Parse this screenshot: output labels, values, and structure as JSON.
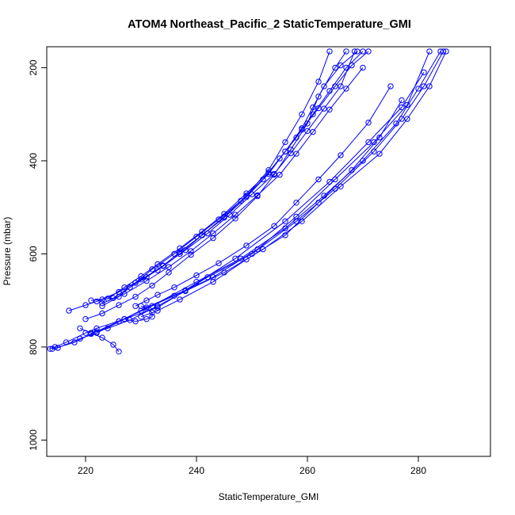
{
  "chart_data": {
    "type": "line",
    "title": "ATOM4 Northeast_Pacific_2 StaticTemperature_GMI",
    "xlabel": "StaticTemperature_GMI",
    "ylabel": "Pressure (mbar)",
    "xlim": [
      213,
      293
    ],
    "ylim": [
      1035,
      155
    ],
    "y_reversed": true,
    "xticks": [
      "220",
      "240",
      "260",
      "280"
    ],
    "yticks": [
      "200",
      "400",
      "600",
      "800",
      "1000"
    ],
    "grid": false,
    "legend": "none",
    "series_color": "#0000ff",
    "series": [
      {
        "x": [
          213.6,
          214.5,
          216.5,
          220.0,
          222.0,
          227.0,
          233.0,
          242.0,
          250.0,
          258.0,
          265.0,
          272.0,
          277.0,
          281.0,
          284.5
        ],
        "y": [
          804,
          800,
          790,
          770,
          760,
          740,
          715,
          650,
          600,
          530,
          460,
          380,
          310,
          240,
          165
        ]
      },
      {
        "x": [
          214.0,
          218.0,
          221.0,
          226.0,
          232.0,
          240.0,
          248.0,
          256.0,
          263.0,
          270.0,
          276.0,
          280.0,
          284.0
        ],
        "y": [
          804,
          790,
          772,
          745,
          712,
          660,
          610,
          545,
          475,
          400,
          320,
          245,
          165
        ]
      },
      {
        "x": [
          221.0,
          224.0,
          228.0,
          233.0,
          238.0,
          245.0,
          252.0,
          259.0,
          266.0,
          273.0,
          278.0,
          282.0,
          285.0
        ],
        "y": [
          770,
          760,
          742,
          712,
          680,
          640,
          590,
          530,
          455,
          385,
          310,
          240,
          165
        ]
      },
      {
        "x": [
          215.0,
          219.0,
          222.0,
          227.0,
          231.0,
          238.0,
          247.0,
          256.0,
          264.0,
          271.0,
          277.0,
          281.0
        ],
        "y": [
          802,
          782,
          770,
          740,
          715,
          678,
          610,
          530,
          445,
          360,
          285,
          210
        ]
      },
      {
        "x": [
          222.0,
          226.0,
          230.0,
          236.0,
          243.0,
          251.0,
          258.0,
          265.0,
          272.0,
          278.0,
          282.0
        ],
        "y": [
          768,
          745,
          722,
          690,
          650,
          590,
          520,
          440,
          360,
          280,
          165
        ]
      },
      {
        "x": [
          217.0,
          220.0,
          223.0,
          226.0,
          229.0,
          233.0,
          237.0,
          241.0,
          245.0,
          249.0,
          253.0,
          256.0,
          259.0,
          262.0,
          264.0
        ],
        "y": [
          722,
          710,
          698,
          682,
          662,
          635,
          600,
          560,
          520,
          475,
          420,
          360,
          300,
          230,
          165
        ]
      },
      {
        "x": [
          220.0,
          223.0,
          226.0,
          229.0,
          232.0,
          235.0,
          239.0,
          243.0,
          247.0,
          251.0,
          254.0,
          257.0,
          260.0,
          262.0,
          265.0,
          267.0
        ],
        "y": [
          740,
          728,
          710,
          692,
          668,
          640,
          602,
          566,
          524,
          476,
          430,
          376,
          320,
          262,
          200,
          165
        ]
      },
      {
        "x": [
          221.0,
          225.0,
          228.0,
          231.0,
          234.0,
          237.0,
          241.0,
          245.0,
          249.0,
          253.0,
          256.0,
          259.0,
          261.0,
          263.0,
          266.0,
          269.0
        ],
        "y": [
          700,
          695,
          672,
          650,
          625,
          596,
          560,
          522,
          478,
          428,
          380,
          330,
          285,
          240,
          195,
          165
        ]
      },
      {
        "x": [
          223.0,
          226.0,
          229.0,
          232.0,
          236.0,
          240.0,
          244.0,
          248.0,
          252.0,
          255.0,
          258.0,
          261.0,
          264.0,
          267.0,
          270.0
        ],
        "y": [
          712,
          692,
          662,
          633,
          600,
          563,
          526,
          486,
          440,
          395,
          350,
          300,
          250,
          200,
          165
        ]
      },
      {
        "x": [
          224.0,
          227.0,
          230.0,
          233.0,
          237.0,
          241.0,
          245.0,
          249.0,
          253.0,
          256.0,
          259.0,
          262.0,
          265.0,
          268.0,
          271.0
        ],
        "y": [
          696,
          672,
          648,
          622,
          588,
          552,
          514,
          470,
          425,
          380,
          333,
          287,
          240,
          195,
          165
        ]
      },
      {
        "x": [
          222.0,
          226.0,
          230.0,
          234.0,
          238.0,
          242.0,
          246.0,
          250.0,
          254.0,
          257.0,
          260.0,
          263.0,
          266.0,
          268.5
        ],
        "y": [
          702,
          682,
          655,
          626,
          592,
          556,
          516,
          472,
          428,
          384,
          336,
          288,
          240,
          165
        ]
      },
      {
        "x": [
          223.0,
          227.0,
          231.0,
          235.0,
          239.0,
          243.0,
          247.0,
          251.0,
          255.0,
          258.0,
          261.0,
          264.0,
          267.0,
          270.0
        ],
        "y": [
          706,
          686,
          658,
          628,
          594,
          556,
          516,
          474,
          430,
          385,
          338,
          290,
          245,
          200
        ]
      },
      {
        "x": [
          230.0,
          233.0,
          237.0,
          243.0,
          249.0,
          256.0,
          262.0,
          268.0,
          273.0,
          277.0
        ],
        "y": [
          735,
          722,
          698,
          660,
          612,
          560,
          490,
          420,
          350,
          270
        ]
      },
      {
        "x": [
          229.0,
          231.0,
          233.0,
          236.0,
          240.0,
          244.0,
          249.0,
          254.0,
          258.0,
          262.0,
          266.0,
          271.0,
          275.0
        ],
        "y": [
          712,
          700,
          688,
          672,
          646,
          620,
          582,
          540,
          490,
          440,
          388,
          318,
          240
        ]
      },
      {
        "x": [
          219.0,
          221.0,
          223.0,
          225.0,
          226.0
        ],
        "y": [
          760,
          770,
          780,
          795,
          810
        ]
      },
      {
        "x": [
          230.0,
          231.0,
          232.0,
          232.0,
          231.0,
          229.0,
          227.0
        ],
        "y": [
          712,
          718,
          726,
          735,
          740,
          745,
          740
        ]
      }
    ]
  }
}
